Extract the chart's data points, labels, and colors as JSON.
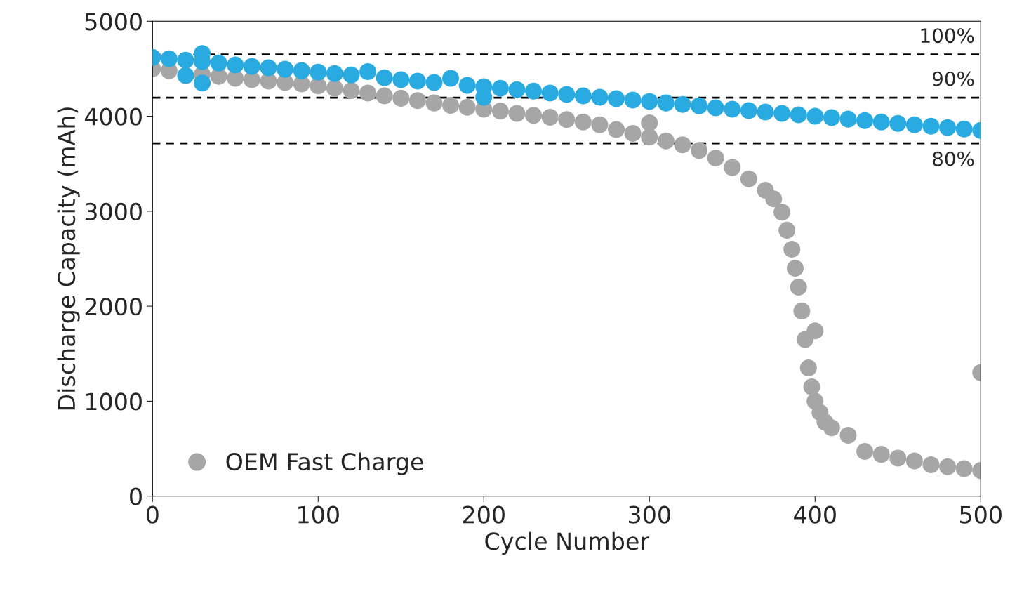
{
  "chart_data": {
    "type": "scatter",
    "xlabel": "Cycle Number",
    "ylabel": "Discharge Capacity (mAh)",
    "xlim": [
      0,
      500
    ],
    "xticks": [
      0,
      100,
      200,
      300,
      400,
      500
    ],
    "ylim": [
      0,
      5000
    ],
    "yticks": [
      0,
      1000,
      2000,
      3000,
      4000,
      5000
    ],
    "grid": false,
    "legend": "bottom left",
    "marker": "circle",
    "series": [
      {
        "color": "#29abe2",
        "x": [
          0,
          10,
          20,
          20,
          30,
          30,
          30,
          40,
          50,
          60,
          70,
          80,
          90,
          100,
          110,
          120,
          130,
          140,
          150,
          160,
          170,
          180,
          190,
          200,
          200,
          210,
          220,
          230,
          240,
          250,
          260,
          270,
          280,
          290,
          300,
          310,
          320,
          330,
          340,
          350,
          360,
          370,
          380,
          390,
          400,
          410,
          420,
          430,
          440,
          450,
          460,
          470,
          480,
          490,
          500
        ],
        "values": [
          4620,
          4605,
          4590,
          4430,
          4575,
          4350,
          4660,
          4560,
          4540,
          4525,
          4510,
          4495,
          4480,
          4465,
          4450,
          4435,
          4470,
          4405,
          4385,
          4370,
          4355,
          4400,
          4325,
          4310,
          4200,
          4295,
          4280,
          4265,
          4245,
          4230,
          4215,
          4200,
          4185,
          4170,
          4155,
          4140,
          4125,
          4110,
          4090,
          4075,
          4060,
          4045,
          4030,
          4015,
          4000,
          3985,
          3970,
          3955,
          3940,
          3925,
          3910,
          3895,
          3880,
          3865,
          3850
        ]
      },
      {
        "name": "OEM Fast Charge",
        "color": "#a6a6a6",
        "x": [
          0,
          10,
          30,
          40,
          50,
          60,
          70,
          80,
          90,
          100,
          110,
          120,
          130,
          140,
          150,
          160,
          170,
          180,
          190,
          200,
          210,
          220,
          230,
          240,
          250,
          260,
          270,
          280,
          290,
          300,
          300,
          310,
          320,
          330,
          340,
          350,
          360,
          370,
          375,
          380,
          383,
          386,
          388,
          390,
          392,
          394,
          396,
          398,
          400,
          400,
          403,
          406,
          410,
          420,
          430,
          440,
          450,
          460,
          470,
          480,
          490,
          500,
          500
        ],
        "values": [
          4500,
          4480,
          4440,
          4420,
          4400,
          4385,
          4370,
          4355,
          4340,
          4320,
          4295,
          4270,
          4245,
          4215,
          4190,
          4165,
          4140,
          4115,
          4095,
          4075,
          4055,
          4030,
          4010,
          3990,
          3965,
          3940,
          3910,
          3860,
          3820,
          3780,
          3930,
          3740,
          3700,
          3640,
          3560,
          3460,
          3340,
          3220,
          3130,
          2990,
          2800,
          2600,
          2400,
          2200,
          1950,
          1650,
          1350,
          1150,
          1000,
          1740,
          880,
          780,
          720,
          640,
          470,
          440,
          400,
          370,
          330,
          310,
          290,
          270,
          1300
        ]
      }
    ],
    "ref_lines": [
      {
        "axis": "y",
        "value": 4650,
        "color": "#000000",
        "line_style": "dashed"
      },
      {
        "axis": "y",
        "value": 4195,
        "color": "#000000",
        "line_style": "dashed"
      },
      {
        "axis": "y",
        "value": 3715,
        "color": "#000000",
        "line_style": "dashed"
      }
    ],
    "annotations": [
      {
        "text": "100%",
        "y": 4650
      },
      {
        "text": "90%",
        "y": 4195
      },
      {
        "text": "80%",
        "y": 3715
      }
    ]
  }
}
